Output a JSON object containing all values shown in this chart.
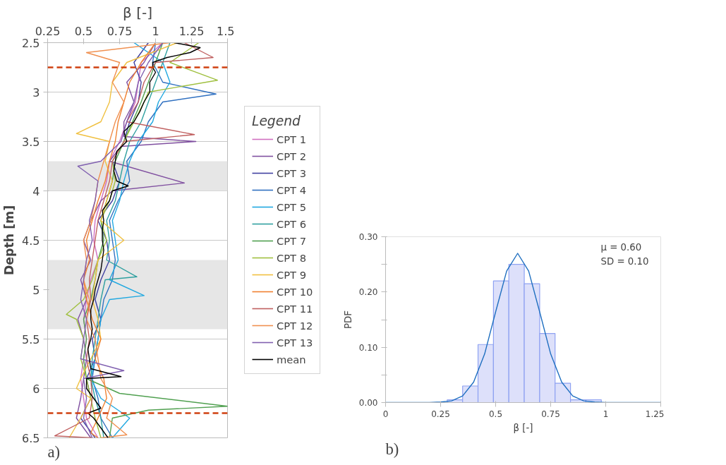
{
  "chart_data": [
    {
      "type": "line",
      "title": "a)",
      "xlabel": "β [-]",
      "ylabel": "Depth [m]",
      "legend_title": "Legend",
      "legend": "right",
      "grid": "y",
      "xlim": [
        0.25,
        1.5
      ],
      "xticks": [
        0.25,
        0.5,
        0.75,
        1,
        1.25,
        1.5
      ],
      "ylim": [
        6.5,
        2.5
      ],
      "yticks": [
        2.5,
        3,
        3.5,
        4,
        4.5,
        5,
        5.5,
        6,
        6.5
      ],
      "ref_lines": [
        {
          "axis": "y",
          "value": 2.75,
          "color": "#d04010",
          "line_style": "dashed"
        },
        {
          "axis": "y",
          "value": 6.25,
          "color": "#d04010",
          "line_style": "dashed"
        }
      ],
      "bands": [
        {
          "axis": "y",
          "from": 3.7,
          "to": 4.0,
          "color": "#e6e6e6"
        },
        {
          "axis": "y",
          "from": 4.7,
          "to": 5.4,
          "color": "#e6e6e6"
        }
      ],
      "series": [
        {
          "name": "CPT 1",
          "color": "#d070c0",
          "x": [
            1.05,
            0.9,
            0.88,
            0.86,
            0.8,
            0.75,
            0.68,
            0.66,
            0.62,
            0.58,
            0.57,
            0.6,
            0.55,
            0.52,
            0.5,
            0.52,
            0.5,
            0.48,
            0.5,
            0.52,
            0.6
          ],
          "values": [
            2.5,
            2.7,
            2.9,
            3.1,
            3.3,
            3.5,
            3.7,
            3.9,
            4.1,
            4.3,
            4.5,
            4.7,
            4.9,
            5.1,
            5.3,
            5.5,
            5.7,
            5.9,
            6.1,
            6.3,
            6.5
          ]
        },
        {
          "name": "CPT 2",
          "color": "#8050a0",
          "x": [
            1.0,
            0.92,
            0.8,
            0.85,
            0.78,
            0.78,
            1.28,
            0.76,
            0.68,
            1.2,
            0.7,
            0.62,
            0.55,
            0.5,
            0.55,
            0.48,
            0.52,
            0.46,
            0.5,
            0.52,
            0.5,
            0.48,
            0.45,
            0.55
          ],
          "values": [
            2.5,
            2.7,
            2.9,
            3.1,
            3.3,
            3.45,
            3.5,
            3.55,
            3.7,
            3.92,
            4.0,
            4.1,
            4.3,
            4.5,
            4.7,
            4.9,
            5.1,
            5.3,
            5.5,
            5.7,
            5.9,
            6.1,
            6.3,
            6.5
          ]
        },
        {
          "name": "CPT 3",
          "color": "#4040a0",
          "x": [
            0.95,
            0.85,
            0.9,
            0.88,
            0.82,
            0.78,
            0.7,
            0.75,
            0.7,
            0.6,
            0.66,
            0.68,
            0.62,
            0.58,
            0.62,
            0.56,
            0.58,
            0.52,
            0.55,
            0.48,
            0.58
          ],
          "values": [
            2.5,
            2.7,
            2.9,
            3.1,
            3.3,
            3.5,
            3.7,
            3.9,
            4.1,
            4.3,
            4.5,
            4.7,
            4.9,
            5.1,
            5.3,
            5.5,
            5.7,
            5.9,
            6.1,
            6.3,
            6.5
          ]
        },
        {
          "name": "CPT 4",
          "color": "#3070c0",
          "x": [
            1.0,
            0.98,
            1.05,
            1.42,
            1.05,
            0.95,
            0.9,
            0.8,
            0.82,
            0.74,
            0.68,
            0.7,
            0.72,
            0.7,
            0.64,
            0.62,
            0.6,
            0.58,
            0.56,
            0.6,
            0.62,
            0.7
          ],
          "values": [
            2.5,
            2.7,
            2.9,
            3.02,
            3.1,
            3.3,
            3.5,
            3.7,
            3.9,
            4.1,
            4.3,
            4.5,
            4.7,
            4.9,
            5.1,
            5.3,
            5.5,
            5.7,
            5.9,
            6.1,
            6.3,
            6.5
          ]
        },
        {
          "name": "CPT 5",
          "color": "#20a8e0",
          "x": [
            0.85,
            1.05,
            1.1,
            1.02,
            0.98,
            0.88,
            0.82,
            0.78,
            0.75,
            0.7,
            0.72,
            0.74,
            0.68,
            0.92,
            0.68,
            0.62,
            0.6,
            0.58,
            0.55,
            0.62,
            0.82,
            0.7
          ],
          "values": [
            2.5,
            2.7,
            2.9,
            3.1,
            3.3,
            3.5,
            3.7,
            3.9,
            4.1,
            4.3,
            4.5,
            4.7,
            4.9,
            5.06,
            5.1,
            5.3,
            5.5,
            5.7,
            5.9,
            6.1,
            6.3,
            6.5
          ]
        },
        {
          "name": "CPT 6",
          "color": "#30a0a0",
          "x": [
            1.1,
            1.05,
            1.0,
            0.95,
            0.9,
            0.82,
            0.78,
            0.75,
            0.72,
            0.66,
            0.68,
            0.66,
            0.87,
            0.65,
            0.62,
            0.6,
            0.58,
            0.56,
            0.55,
            0.58,
            0.62,
            0.64
          ],
          "values": [
            2.5,
            2.7,
            2.9,
            3.1,
            3.3,
            3.5,
            3.7,
            3.9,
            4.1,
            4.3,
            4.5,
            4.7,
            4.87,
            4.9,
            5.1,
            5.3,
            5.5,
            5.7,
            5.9,
            6.1,
            6.3,
            6.5
          ]
        },
        {
          "name": "CPT 7",
          "color": "#50a050",
          "x": [
            1.05,
            1.0,
            0.95,
            0.9,
            0.84,
            0.78,
            0.72,
            0.7,
            0.66,
            0.62,
            0.64,
            0.6,
            0.58,
            0.55,
            0.5,
            0.52,
            0.5,
            0.52,
            0.75,
            1.5,
            0.95,
            0.7,
            0.68
          ],
          "values": [
            2.5,
            2.7,
            2.9,
            3.1,
            3.3,
            3.5,
            3.7,
            3.9,
            4.1,
            4.3,
            4.5,
            4.7,
            4.9,
            5.1,
            5.3,
            5.5,
            5.7,
            5.9,
            6.05,
            6.18,
            6.22,
            6.3,
            6.5
          ]
        },
        {
          "name": "CPT 8",
          "color": "#a0c040",
          "x": [
            1.3,
            1.1,
            1.43,
            0.95,
            0.92,
            0.85,
            0.78,
            0.7,
            0.72,
            0.68,
            0.62,
            0.66,
            0.6,
            0.56,
            0.5,
            0.38,
            0.45,
            0.5,
            0.48,
            0.52,
            0.55,
            0.58,
            0.62
          ],
          "values": [
            2.5,
            2.7,
            2.88,
            3.0,
            3.1,
            3.3,
            3.5,
            3.7,
            3.9,
            4.1,
            4.3,
            4.5,
            4.7,
            4.9,
            5.1,
            5.25,
            5.3,
            5.5,
            5.7,
            5.9,
            6.1,
            6.3,
            6.5
          ]
        },
        {
          "name": "CPT 9",
          "color": "#f0c040",
          "x": [
            1.15,
            0.8,
            0.7,
            0.68,
            0.62,
            0.45,
            0.68,
            0.65,
            0.7,
            0.66,
            0.62,
            0.78,
            0.6,
            0.58,
            0.56,
            0.6,
            0.62,
            0.55,
            0.48,
            0.45,
            0.55,
            0.48,
            0.4
          ],
          "values": [
            2.5,
            2.7,
            2.9,
            3.1,
            3.3,
            3.42,
            3.5,
            3.7,
            3.9,
            4.1,
            4.3,
            4.5,
            4.7,
            4.9,
            5.1,
            5.3,
            5.5,
            5.7,
            5.9,
            6.0,
            6.1,
            6.3,
            6.5
          ]
        },
        {
          "name": "CPT 10",
          "color": "#f08030",
          "x": [
            1.0,
            0.9,
            0.82,
            0.78,
            0.74,
            0.72,
            0.68,
            0.65,
            0.6,
            0.56,
            0.52,
            0.54,
            0.5,
            0.52,
            0.56,
            0.62,
            0.58,
            0.64,
            0.66,
            0.6,
            0.55,
            0.6
          ],
          "values": [
            2.5,
            2.7,
            2.9,
            3.1,
            3.3,
            3.5,
            3.7,
            3.9,
            4.1,
            4.3,
            4.5,
            4.7,
            4.9,
            5.1,
            5.3,
            5.5,
            5.7,
            5.9,
            6.1,
            6.3,
            6.45,
            6.5
          ]
        },
        {
          "name": "CPT 11",
          "color": "#c06060",
          "x": [
            1.2,
            1.4,
            1.0,
            0.92,
            0.88,
            0.8,
            1.27,
            0.78,
            0.7,
            0.68,
            0.64,
            0.6,
            0.58,
            0.56,
            0.54,
            0.55,
            0.52,
            0.54,
            0.52,
            0.55,
            0.56,
            0.54,
            0.3,
            0.56
          ],
          "values": [
            2.5,
            2.65,
            2.7,
            2.9,
            3.1,
            3.3,
            3.43,
            3.5,
            3.7,
            3.9,
            4.1,
            4.3,
            4.5,
            4.7,
            4.9,
            5.1,
            5.3,
            5.5,
            5.7,
            5.9,
            6.1,
            6.3,
            6.48,
            6.5
          ]
        },
        {
          "name": "CPT 12",
          "color": "#f09050",
          "x": [
            1.1,
            0.52,
            0.75,
            0.7,
            0.78,
            0.72,
            0.68,
            0.64,
            0.6,
            0.58,
            0.55,
            0.5,
            0.52,
            0.5,
            0.54,
            0.52,
            0.58,
            0.6,
            0.62,
            0.7,
            0.66,
            0.8,
            0.62
          ],
          "values": [
            2.5,
            2.6,
            2.7,
            2.9,
            3.1,
            3.3,
            3.5,
            3.7,
            3.9,
            4.1,
            4.3,
            4.5,
            4.7,
            4.9,
            5.1,
            5.3,
            5.5,
            5.7,
            5.9,
            6.1,
            6.3,
            6.47,
            6.5
          ]
        },
        {
          "name": "CPT 13",
          "color": "#8060b0",
          "x": [
            1.05,
            0.95,
            0.88,
            0.85,
            0.8,
            0.76,
            0.62,
            0.46,
            0.6,
            0.58,
            0.54,
            0.56,
            0.52,
            0.5,
            0.48,
            0.52,
            0.5,
            0.48,
            0.78,
            0.5,
            0.52,
            0.5,
            0.56
          ],
          "values": [
            2.5,
            2.7,
            2.9,
            3.1,
            3.3,
            3.5,
            3.7,
            3.75,
            3.9,
            4.1,
            4.3,
            4.5,
            4.7,
            4.9,
            5.1,
            5.3,
            5.5,
            5.7,
            5.82,
            5.9,
            6.1,
            6.3,
            6.5
          ]
        },
        {
          "name": "mean",
          "color": "#000000",
          "x": [
            1.13,
            1.31,
            1.24,
            1.08,
            0.98,
            0.98,
            1.0,
            0.96,
            0.96,
            0.92,
            0.89,
            0.85,
            0.78,
            0.8,
            0.73,
            0.72,
            0.71,
            0.73,
            0.81,
            0.7,
            0.68,
            0.63,
            0.64,
            0.63,
            0.63,
            0.64,
            0.63,
            0.62,
            0.6,
            0.58,
            0.57,
            0.55,
            0.55,
            0.56,
            0.55,
            0.53,
            0.54,
            0.55,
            0.76,
            0.52,
            0.52,
            0.57,
            0.62,
            0.53,
            0.57,
            0.62,
            0.67
          ],
          "values": [
            2.5,
            2.55,
            2.6,
            2.65,
            2.7,
            2.75,
            2.8,
            2.9,
            3.0,
            3.1,
            3.2,
            3.3,
            3.4,
            3.5,
            3.6,
            3.7,
            3.8,
            3.9,
            3.95,
            4.0,
            4.1,
            4.2,
            4.3,
            4.4,
            4.5,
            4.6,
            4.7,
            4.8,
            4.9,
            5.0,
            5.1,
            5.2,
            5.3,
            5.4,
            5.5,
            5.6,
            5.7,
            5.8,
            5.88,
            5.9,
            6.0,
            6.1,
            6.2,
            6.25,
            6.3,
            6.4,
            6.5
          ]
        }
      ]
    },
    {
      "type": "histogram",
      "title": "b)",
      "xlabel": "β [-]",
      "ylabel": "PDF",
      "color": "#dde0fa",
      "bins": [
        0.28,
        0.35,
        0.42,
        0.49,
        0.56,
        0.63,
        0.7,
        0.77,
        0.84,
        0.91,
        0.98
      ],
      "values": [
        0.005,
        0.03,
        0.105,
        0.22,
        0.25,
        0.215,
        0.125,
        0.035,
        0.005,
        0.005
      ],
      "xlim": [
        0,
        1.25
      ],
      "xticks": [
        0,
        0.25,
        0.5,
        0.75,
        1,
        1.25
      ],
      "ylim": [
        0,
        0.3
      ],
      "yticks": [
        {
          "value": 0,
          "label": "0.00"
        },
        {
          "value": 0.05,
          "label": null
        },
        {
          "value": 0.1,
          "label": "0.10"
        },
        {
          "value": 0.15,
          "label": null
        },
        {
          "value": 0.2,
          "label": "0.20"
        },
        {
          "value": 0.25,
          "label": null
        },
        {
          "value": 0.3,
          "label": "0.30"
        }
      ],
      "annotations": [
        "μ = 0.60",
        "SD = 0.10"
      ],
      "series": [
        {
          "type": "line",
          "color": "#1f6fc0",
          "x": [
            0,
            0.2,
            0.25,
            0.3,
            0.35,
            0.4,
            0.45,
            0.5,
            0.55,
            0.6,
            0.65,
            0.7,
            0.75,
            0.8,
            0.85,
            0.9,
            0.95,
            1.0,
            1.25
          ],
          "values": [
            0,
            0,
            0.001,
            0.003,
            0.012,
            0.037,
            0.088,
            0.164,
            0.238,
            0.27,
            0.238,
            0.164,
            0.088,
            0.037,
            0.012,
            0.003,
            0.001,
            0,
            0
          ]
        }
      ]
    }
  ]
}
